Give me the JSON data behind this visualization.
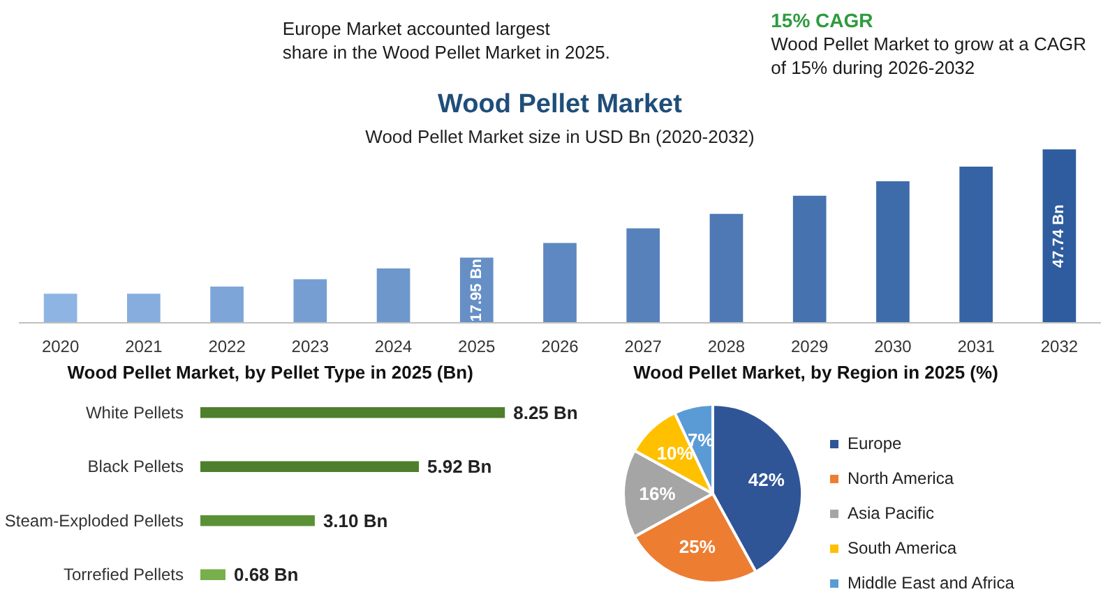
{
  "chart_data": [
    {
      "type": "other",
      "annotations": [
        "Europe Market accounted largest share in the Wood Pellet Market in 2025.",
        "15% CAGR",
        "Wood Pellet Market to grow at a CAGR of 15% during 2026-2032"
      ]
    },
    {
      "type": "bar",
      "title": "Wood Pellet Market",
      "subtitle": "Wood Pellet Market size in USD Bn (2020-2032)",
      "categories": [
        "2020",
        "2021",
        "2022",
        "2023",
        "2024",
        "2025",
        "2026",
        "2027",
        "2028",
        "2029",
        "2030",
        "2031",
        "2032"
      ],
      "values": [
        8,
        8,
        10,
        12,
        15,
        17.95,
        22,
        26,
        30,
        35,
        39,
        43,
        47.74
      ],
      "colors": [
        "#8EB4E3",
        "#86ADDD",
        "#7EA5D8",
        "#769ED2",
        "#6E97CC",
        "#668FC6",
        "#5E88C1",
        "#5681BB",
        "#4E79B5",
        "#4672AF",
        "#3E6BAA",
        "#3663A4",
        "#2E5C9E"
      ],
      "value_labels": [
        null,
        null,
        null,
        null,
        null,
        "17.95 Bn",
        null,
        null,
        null,
        null,
        null,
        null,
        "47.74 Bn"
      ],
      "ylim": [
        0,
        48
      ],
      "tick_labels": "x"
    },
    {
      "type": "bar",
      "orientation": "horizontal",
      "title": "Wood Pellet Market, by Pellet Type in 2025 (Bn)",
      "categories": [
        "White Pellets",
        "Black Pellets",
        "Steam-Exploded Pellets",
        "Torrefied Pellets"
      ],
      "values": [
        8.25,
        5.92,
        3.1,
        0.68
      ],
      "colors": [
        "#4E7F2D",
        "#4E7F2D",
        "#5A9137",
        "#76AF4B"
      ],
      "value_labels": [
        "8.25 Bn",
        "5.92 Bn",
        "3.10 Bn",
        "0.68 Bn"
      ],
      "tick_labels": "y"
    },
    {
      "type": "pie",
      "title": "Wood Pellet Market, by Region in 2025 (%)",
      "categories": [
        "Europe",
        "North America",
        "Asia Pacific",
        "South America",
        "Middle East and Africa"
      ],
      "values": [
        42,
        25,
        16,
        10,
        7
      ],
      "colors": [
        "#2F5597",
        "#ED7D31",
        "#A5A5A5",
        "#FFC000",
        "#5B9BD5"
      ],
      "value_labels": [
        "42%",
        "25%",
        "16%",
        "10%",
        "7%"
      ],
      "legend": "right"
    }
  ]
}
